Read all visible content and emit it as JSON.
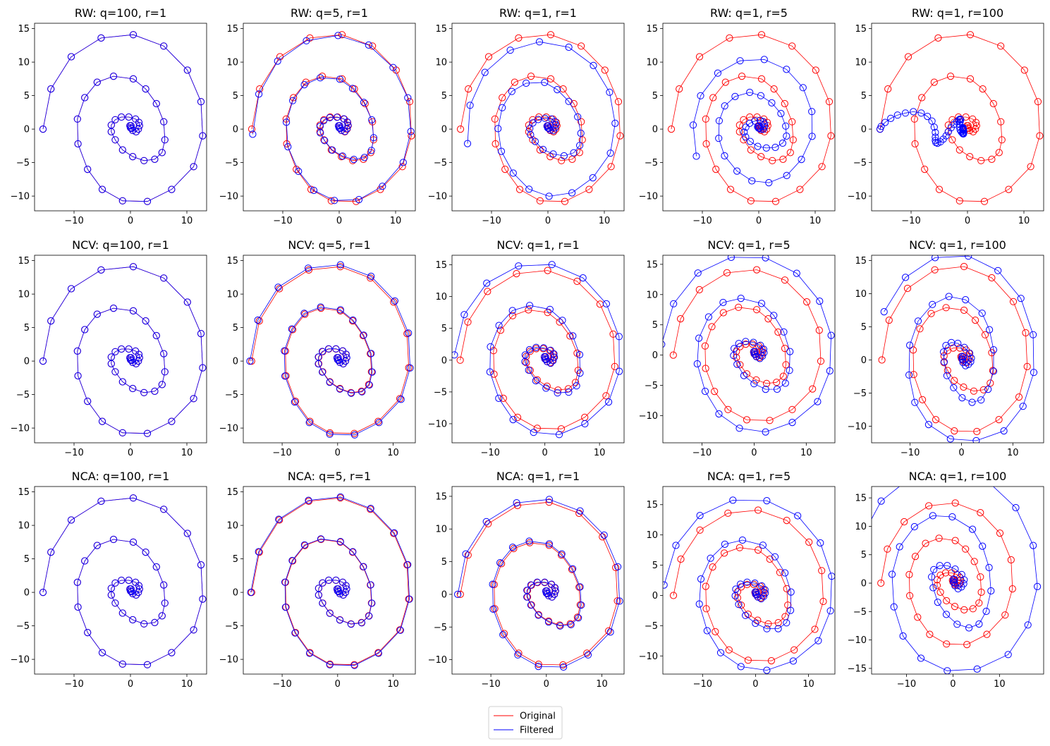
{
  "figure": {
    "layout": "3x5 grid of line+marker plots",
    "colors": {
      "original": "#ff0000",
      "filtered": "#0000ff"
    },
    "legend": {
      "placement": "bottom-center",
      "entries": [
        "Original",
        "Filtered"
      ]
    }
  },
  "chart_data": [
    {
      "type": "line",
      "title": "RW: q=100, r=1",
      "model": "RW",
      "q": 100,
      "r": 1,
      "xticks": [
        -10,
        0,
        10
      ],
      "yticks": [
        -10,
        -5,
        0,
        5,
        10,
        15
      ],
      "xlim": [
        -17,
        13.5
      ],
      "ylim": [
        -12.2,
        15.8
      ],
      "filtered": {
        "kind": "spiral",
        "scale": 1.0,
        "rot": 0,
        "dx": 0,
        "dy": 0
      }
    },
    {
      "type": "line",
      "title": "RW: q=5, r=1",
      "model": "RW",
      "q": 5,
      "r": 1,
      "xticks": [
        -10,
        0,
        10
      ],
      "yticks": [
        -10,
        -5,
        0,
        5,
        10,
        15
      ],
      "xlim": [
        -17,
        13.5
      ],
      "ylim": [
        -12.2,
        15.8
      ],
      "filtered": {
        "kind": "spiral",
        "scale": 0.99,
        "rot": 0.05,
        "dx": 0,
        "dy": 0
      }
    },
    {
      "type": "line",
      "title": "RW: q=1, r=1",
      "model": "RW",
      "q": 1,
      "r": 1,
      "xticks": [
        -10,
        0,
        10
      ],
      "yticks": [
        -10,
        -5,
        0,
        5,
        10,
        15
      ],
      "xlim": [
        -17,
        13.5
      ],
      "ylim": [
        -12.2,
        15.8
      ],
      "filtered": {
        "kind": "spiral",
        "scale": 0.93,
        "rot": 0.15,
        "dx": 0,
        "dy": 0
      }
    },
    {
      "type": "line",
      "title": "RW: q=1, r=5",
      "model": "RW",
      "q": 1,
      "r": 5,
      "xticks": [
        -10,
        0,
        10
      ],
      "yticks": [
        -10,
        -5,
        0,
        5,
        10,
        15
      ],
      "xlim": [
        -17,
        13.5
      ],
      "ylim": [
        -12.2,
        15.8
      ],
      "filtered": {
        "kind": "spiral",
        "scale": 0.76,
        "rot": 0.35,
        "dx": 0,
        "dy": 0
      }
    },
    {
      "type": "line",
      "title": "RW: q=1, r=100",
      "model": "RW",
      "q": 1,
      "r": 100,
      "xticks": [
        -10,
        0,
        10
      ],
      "yticks": [
        -10,
        -5,
        0,
        5,
        10,
        15
      ],
      "xlim": [
        -17,
        13.5
      ],
      "ylim": [
        -12.2,
        15.8
      ],
      "filtered": {
        "kind": "lag"
      }
    },
    {
      "type": "line",
      "title": "NCV: q=100, r=1",
      "model": "NCV",
      "q": 100,
      "r": 1,
      "xticks": [
        -10,
        0,
        10
      ],
      "yticks": [
        -10,
        -5,
        0,
        5,
        10,
        15
      ],
      "xlim": [
        -17,
        13.5
      ],
      "ylim": [
        -12.2,
        15.8
      ],
      "filtered": {
        "kind": "spiral",
        "scale": 1.0,
        "rot": 0,
        "dx": 0,
        "dy": 0
      }
    },
    {
      "type": "line",
      "title": "NCV: q=5, r=1",
      "model": "NCV",
      "q": 5,
      "r": 1,
      "xticks": [
        -10,
        0,
        10
      ],
      "yticks": [
        -10,
        -5,
        0,
        5,
        10,
        15
      ],
      "xlim": [
        -17,
        14
      ],
      "ylim": [
        -12.2,
        15.8
      ],
      "filtered": {
        "kind": "spiral",
        "scale": 1.02,
        "rot": 0,
        "dx": 0,
        "dy": 0
      }
    },
    {
      "type": "line",
      "title": "NCV: q=1, r=1",
      "model": "NCV",
      "q": 1,
      "r": 1,
      "xticks": [
        -10,
        0,
        10
      ],
      "yticks": [
        -10,
        -5,
        0,
        5,
        10,
        15
      ],
      "xlim": [
        -17,
        14.5
      ],
      "ylim": [
        -13,
        16.5
      ],
      "filtered": {
        "kind": "spiral",
        "scale": 1.07,
        "rot": -0.05,
        "dx": 0,
        "dy": 0
      }
    },
    {
      "type": "line",
      "title": "NCV: q=1, r=5",
      "model": "NCV",
      "q": 1,
      "r": 5,
      "xticks": [
        -10,
        0,
        10
      ],
      "yticks": [
        -10,
        -5,
        0,
        5,
        10,
        15
      ],
      "xlim": [
        -17.5,
        15.5
      ],
      "ylim": [
        -14.5,
        16.5
      ],
      "filtered": {
        "kind": "spiral",
        "scale": 1.15,
        "rot": -0.1,
        "dx": 0,
        "dy": 0
      }
    },
    {
      "type": "line",
      "title": "NCV: q=1, r=100",
      "model": "NCV",
      "q": 1,
      "r": 100,
      "xticks": [
        -10,
        0,
        10
      ],
      "yticks": [
        -10,
        -5,
        0,
        5,
        10,
        15
      ],
      "xlim": [
        -17.5,
        16
      ],
      "ylim": [
        -12.5,
        15.8
      ],
      "filtered": {
        "kind": "spiral",
        "scale": 1.08,
        "rot": -0.45,
        "dx": 0,
        "dy": 0
      }
    },
    {
      "type": "line",
      "title": "NCA: q=100, r=1",
      "model": "NCA",
      "q": 100,
      "r": 1,
      "xticks": [
        -10,
        0,
        10
      ],
      "yticks": [
        -10,
        -5,
        0,
        5,
        10,
        15
      ],
      "xlim": [
        -17,
        13.5
      ],
      "ylim": [
        -12.2,
        15.8
      ],
      "filtered": {
        "kind": "spiral",
        "scale": 1.0,
        "rot": 0,
        "dx": 0,
        "dy": 0
      }
    },
    {
      "type": "line",
      "title": "NCA: q=5, r=1",
      "model": "NCA",
      "q": 5,
      "r": 1,
      "xticks": [
        -10,
        0,
        10
      ],
      "yticks": [
        -10,
        -5,
        0,
        5,
        10,
        15
      ],
      "xlim": [
        -17,
        14
      ],
      "ylim": [
        -12.2,
        15.8
      ],
      "filtered": {
        "kind": "spiral",
        "scale": 1.01,
        "rot": 0,
        "dx": 0,
        "dy": 0
      }
    },
    {
      "type": "line",
      "title": "NCA: q=1, r=1",
      "model": "NCA",
      "q": 1,
      "r": 1,
      "xticks": [
        -10,
        0,
        10
      ],
      "yticks": [
        -10,
        -5,
        0,
        5,
        10,
        15
      ],
      "xlim": [
        -17,
        14
      ],
      "ylim": [
        -12.2,
        16.5
      ],
      "filtered": {
        "kind": "spiral",
        "scale": 1.03,
        "rot": 0,
        "dx": 0,
        "dy": 0
      }
    },
    {
      "type": "line",
      "title": "NCA: q=1, r=5",
      "model": "NCA",
      "q": 1,
      "r": 5,
      "xticks": [
        -10,
        0,
        10
      ],
      "yticks": [
        -10,
        -5,
        0,
        5,
        10,
        15
      ],
      "xlim": [
        -17.5,
        15
      ],
      "ylim": [
        -13,
        18
      ],
      "filtered": {
        "kind": "spiral",
        "scale": 1.12,
        "rot": -0.1,
        "dx": 0,
        "dy": 0
      }
    },
    {
      "type": "line",
      "title": "NCA: q=1, r=100",
      "model": "NCA",
      "q": 1,
      "r": 100,
      "xticks": [
        -10,
        0,
        10
      ],
      "yticks": [
        -15,
        -10,
        -5,
        0,
        5,
        10,
        15
      ],
      "xlim": [
        -17.5,
        19.5
      ],
      "ylim": [
        -16,
        17
      ],
      "filtered": {
        "kind": "spiral",
        "scale": 1.38,
        "rot": -0.35,
        "dx": 0,
        "dy": 0
      }
    }
  ],
  "original_series": {
    "name": "Original",
    "x": [
      -15.5,
      -14.1,
      -10.5,
      -5.2,
      0.5,
      5.9,
      10.1,
      12.5,
      12.8,
      11.2,
      7.3,
      3.0,
      -1.4,
      -5.0,
      -7.6,
      -9.3,
      -9.4,
      -8.1,
      -5.9,
      -3.0,
      0.5,
      2.7,
      4.6,
      5.9,
      6.1,
      5.6,
      4.3,
      2.4,
      0.4,
      -1.4,
      -2.7,
      -3.4,
      -3.4,
      -2.7,
      -1.6,
      -0.3,
      0.9,
      1.5,
      1.6,
      1.4,
      1.0,
      0.4,
      0.0,
      -0.1,
      0.1,
      0.2
    ],
    "y": [
      0.0,
      6.0,
      10.8,
      13.6,
      14.1,
      12.4,
      8.8,
      4.1,
      -1.0,
      -5.6,
      -9.0,
      -10.8,
      -10.7,
      -9.0,
      -6.0,
      -2.2,
      1.5,
      4.7,
      7.0,
      7.9,
      7.5,
      6.0,
      3.8,
      1.1,
      -1.6,
      -3.5,
      -4.5,
      -4.7,
      -4.1,
      -3.1,
      -1.6,
      -0.4,
      0.6,
      1.4,
      1.8,
      1.8,
      1.5,
      1.0,
      0.5,
      0.0,
      -0.4,
      -0.2,
      0.2,
      0.5,
      0.5,
      0.1
    ]
  },
  "lag_series": {
    "name": "Filtered",
    "x": [
      -15.5,
      -15.3,
      -14.6,
      -13.6,
      -12.4,
      -11.0,
      -9.6,
      -8.2,
      -7.1,
      -6.3,
      -5.9,
      -5.7,
      -5.7,
      -5.7,
      -5.6,
      -5.3,
      -4.8,
      -4.3,
      -3.8,
      -3.4,
      -2.9,
      -2.4,
      -1.9,
      -1.5,
      -1.3,
      -1.2,
      -1.3,
      -1.4,
      -1.4,
      -1.3,
      -1.1,
      -0.9,
      -0.8,
      -0.7,
      -0.7,
      -0.7,
      -0.7,
      -0.8,
      -0.8,
      -0.8,
      -0.8,
      -0.8,
      -0.8,
      -0.8,
      -0.8,
      -0.8
    ],
    "y": [
      0.0,
      0.4,
      1.0,
      1.6,
      2.1,
      2.4,
      2.6,
      2.4,
      1.9,
      1.2,
      0.3,
      -0.5,
      -1.2,
      -1.7,
      -2.0,
      -2.1,
      -1.9,
      -1.5,
      -1.0,
      -0.4,
      0.2,
      0.7,
      1.1,
      1.4,
      1.5,
      1.4,
      1.1,
      0.7,
      0.3,
      -0.1,
      -0.4,
      -0.6,
      -0.7,
      -0.7,
      -0.6,
      -0.4,
      -0.2,
      0.0,
      0.1,
      0.2,
      0.2,
      0.2,
      0.1,
      0.0,
      -0.1,
      -0.1
    ]
  }
}
